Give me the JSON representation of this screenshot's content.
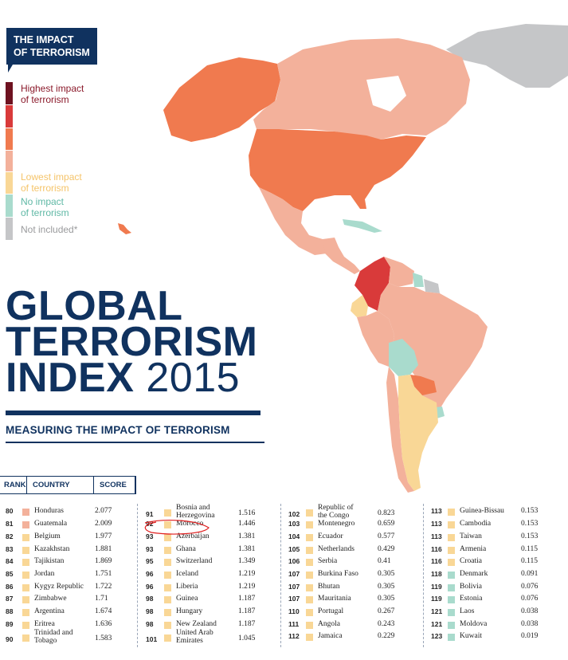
{
  "badge": {
    "line1": "THE IMPACT",
    "line2": "OF TERRORISM"
  },
  "legend": [
    {
      "label": "Highest impact\nof terrorism",
      "color": "#8b1a2b"
    },
    {
      "label": "Lowest impact\nof terrorism",
      "color": "#f9d796"
    },
    {
      "label": "No impact\nof terrorism",
      "color": "#a9dbcd"
    },
    {
      "label": "Not included*",
      "color": "#c5c6c8"
    }
  ],
  "legend_scale": [
    "#6e1220",
    "#d93a3a",
    "#f07a4f",
    "#f3b19b",
    "#f9d796",
    "#a9dbcd",
    "#c5c6c8"
  ],
  "title": {
    "line1": "GLOBAL",
    "line2": "TERRORISM",
    "line3": "INDEX",
    "year": "2015"
  },
  "subtitle": "MEASURING THE IMPACT OF TERRORISM",
  "table_header": {
    "rank": "RANK",
    "country": "COUNTRY",
    "score": "SCORE"
  },
  "colors": {
    "navy": "#10325f",
    "annotation": "#e02020"
  },
  "map_regions": {
    "alaska": "#f07a4f",
    "canada": "#f3b19b",
    "greenland": "#c5c6c8",
    "usa": "#f07a4f",
    "mexico": "#f3b19b",
    "caribbean": "#a9dbcd",
    "central_america": "#f3b19b",
    "colombia": "#d93a3a",
    "venezuela": "#f3b19b",
    "guyanas": "#c5c6c8",
    "guyana": "#a9dbcd",
    "ecuador": "#f9d796",
    "peru": "#f3b19b",
    "brazil": "#f3b19b",
    "bolivia": "#a9dbcd",
    "paraguay": "#f07a4f",
    "uruguay": "#a9dbcd",
    "chile": "#f3b19b",
    "argentina": "#f9d796",
    "hawaii": "#f07a4f"
  },
  "columns": [
    [
      {
        "rank": "80",
        "country": "Honduras",
        "score": "2.077",
        "color": "#f3b19b"
      },
      {
        "rank": "81",
        "country": "Guatemala",
        "score": "2.009",
        "color": "#f3b19b"
      },
      {
        "rank": "82",
        "country": "Belgium",
        "score": "1.977",
        "color": "#f9d796"
      },
      {
        "rank": "83",
        "country": "Kazakhstan",
        "score": "1.881",
        "color": "#f9d796"
      },
      {
        "rank": "84",
        "country": "Tajikistan",
        "score": "1.869",
        "color": "#f9d796"
      },
      {
        "rank": "85",
        "country": "Jordan",
        "score": "1.751",
        "color": "#f9d796"
      },
      {
        "rank": "86",
        "country": "Kygyz Republic",
        "score": "1.722",
        "color": "#f9d796"
      },
      {
        "rank": "87",
        "country": "Zimbabwe",
        "score": "1.71",
        "color": "#f9d796"
      },
      {
        "rank": "88",
        "country": "Argentina",
        "score": "1.674",
        "color": "#f9d796"
      },
      {
        "rank": "89",
        "country": "Eritrea",
        "score": "1.636",
        "color": "#f9d796"
      },
      {
        "rank": "90",
        "country": "Trinidad and\nTobago",
        "score": "1.583",
        "color": "#f9d796"
      }
    ],
    [
      {
        "rank": "91",
        "country": "Bosnia and\nHerzegovina",
        "score": "1.516",
        "color": "#f9d796"
      },
      {
        "rank": "92",
        "country": "Morocco",
        "score": "1.446",
        "color": "#f9d796"
      },
      {
        "rank": "93",
        "country": "Azerbaijan",
        "score": "1.381",
        "color": "#f9d796"
      },
      {
        "rank": "93",
        "country": "Ghana",
        "score": "1.381",
        "color": "#f9d796"
      },
      {
        "rank": "95",
        "country": "Switzerland",
        "score": "1.349",
        "color": "#f9d796"
      },
      {
        "rank": "96",
        "country": "Iceland",
        "score": "1.219",
        "color": "#f9d796"
      },
      {
        "rank": "96",
        "country": "Liberia",
        "score": "1.219",
        "color": "#f9d796"
      },
      {
        "rank": "98",
        "country": "Guinea",
        "score": "1.187",
        "color": "#f9d796"
      },
      {
        "rank": "98",
        "country": "Hungary",
        "score": "1.187",
        "color": "#f9d796"
      },
      {
        "rank": "98",
        "country": "New Zealand",
        "score": "1.187",
        "color": "#f9d796"
      },
      {
        "rank": "101",
        "country": "United Arab\nEmirates",
        "score": "1.045",
        "color": "#f9d796"
      }
    ],
    [
      {
        "rank": "102",
        "country": "Republic of\nthe Congo",
        "score": "0.823",
        "color": "#f9d796"
      },
      {
        "rank": "103",
        "country": "Montenegro",
        "score": "0.659",
        "color": "#f9d796"
      },
      {
        "rank": "104",
        "country": "Ecuador",
        "score": "0.577",
        "color": "#f9d796"
      },
      {
        "rank": "105",
        "country": "Netherlands",
        "score": "0.429",
        "color": "#f9d796"
      },
      {
        "rank": "106",
        "country": "Serbia",
        "score": "0.41",
        "color": "#f9d796"
      },
      {
        "rank": "107",
        "country": "Burkina Faso",
        "score": "0.305",
        "color": "#f9d796"
      },
      {
        "rank": "107",
        "country": "Bhutan",
        "score": "0.305",
        "color": "#f9d796"
      },
      {
        "rank": "107",
        "country": "Mauritania",
        "score": "0.305",
        "color": "#f9d796"
      },
      {
        "rank": "110",
        "country": "Portugal",
        "score": "0.267",
        "color": "#f9d796"
      },
      {
        "rank": "111",
        "country": "Angola",
        "score": "0.243",
        "color": "#f9d796"
      },
      {
        "rank": "112",
        "country": "Jamaica",
        "score": "0.229",
        "color": "#f9d796"
      }
    ],
    [
      {
        "rank": "113",
        "country": "Guinea-Bissau",
        "score": "0.153",
        "color": "#f9d796"
      },
      {
        "rank": "113",
        "country": "Cambodia",
        "score": "0.153",
        "color": "#f9d796"
      },
      {
        "rank": "113",
        "country": "Taiwan",
        "score": "0.153",
        "color": "#f9d796"
      },
      {
        "rank": "116",
        "country": "Armenia",
        "score": "0.115",
        "color": "#f9d796"
      },
      {
        "rank": "116",
        "country": "Croatia",
        "score": "0.115",
        "color": "#f9d796"
      },
      {
        "rank": "118",
        "country": "Denmark",
        "score": "0.091",
        "color": "#a9dbcd"
      },
      {
        "rank": "119",
        "country": "Bolivia",
        "score": "0.076",
        "color": "#a9dbcd"
      },
      {
        "rank": "119",
        "country": "Estonia",
        "score": "0.076",
        "color": "#a9dbcd"
      },
      {
        "rank": "121",
        "country": "Laos",
        "score": "0.038",
        "color": "#a9dbcd"
      },
      {
        "rank": "121",
        "country": "Moldova",
        "score": "0.038",
        "color": "#a9dbcd"
      },
      {
        "rank": "123",
        "country": "Kuwait",
        "score": "0.019",
        "color": "#a9dbcd"
      }
    ]
  ]
}
